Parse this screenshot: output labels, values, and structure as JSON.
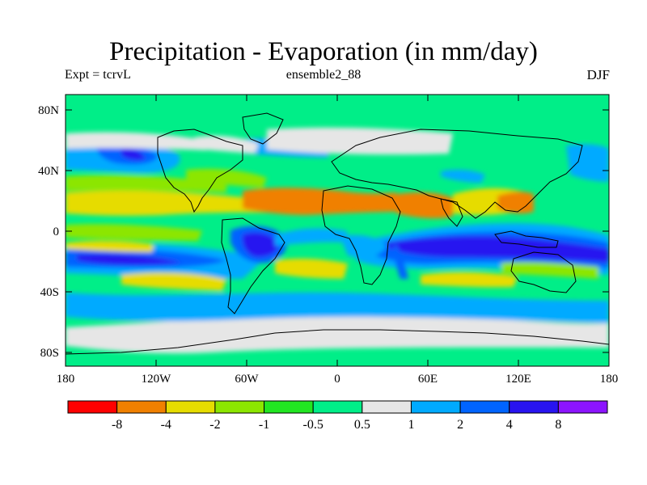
{
  "title": "Precipitation - Evaporation (in mm/day)",
  "subtitle_left": "Expt = tcrvL",
  "subtitle_center": "ensemble2_88",
  "subtitle_right": "DJF",
  "map": {
    "lat_ticks": [
      "80N",
      "40N",
      "0",
      "40S",
      "80S"
    ],
    "lon_ticks": [
      "180",
      "120W",
      "60W",
      "0",
      "60E",
      "120E",
      "180"
    ]
  },
  "colorbar": {
    "colors": [
      "#ff0000",
      "#f08000",
      "#e6dc00",
      "#8ce600",
      "#22e622",
      "#00ee88",
      "#e6e6e6",
      "#00aaff",
      "#0064ff",
      "#2814f0",
      "#8c14ff"
    ],
    "labels": [
      "-8",
      "-4",
      "-2",
      "-1",
      "-0.5",
      "0.5",
      "1",
      "2",
      "4",
      "8"
    ]
  },
  "colors": {
    "strong_negative": "#f08000",
    "negative": "#e6dc00",
    "weak_negative": "#8ce600",
    "neutral": "#00ee88",
    "weak_positive": "#e6e6e6",
    "positive": "#00aaff",
    "strong_positive": "#0064ff",
    "very_strong_positive": "#2814f0"
  }
}
